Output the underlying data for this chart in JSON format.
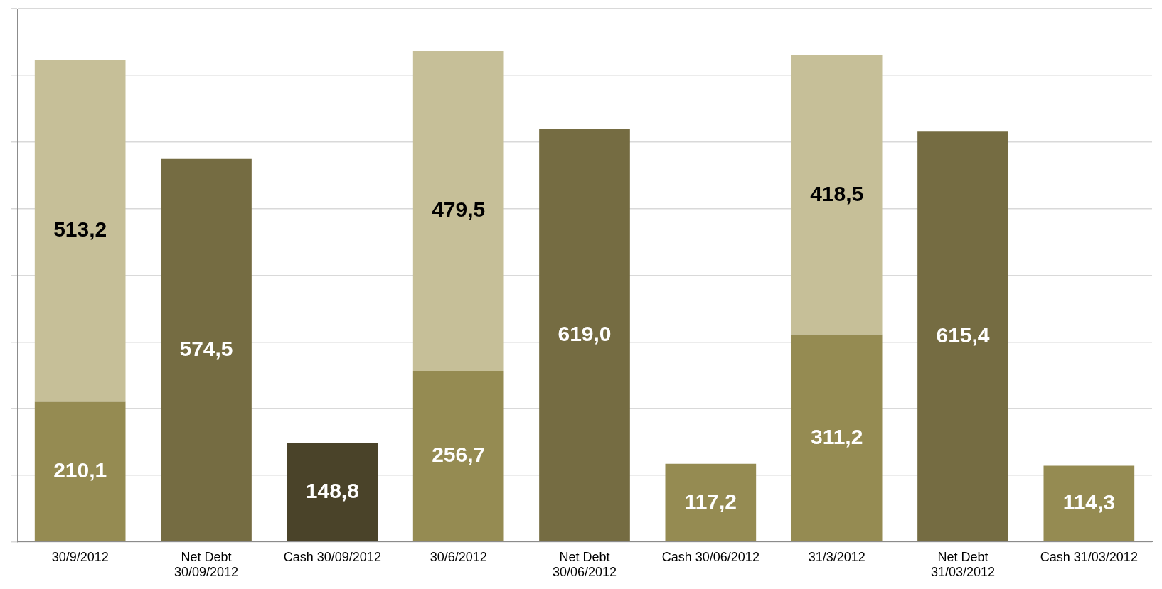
{
  "chart_data": {
    "type": "bar",
    "stacked": true,
    "categories": [
      "30/9/2012",
      "Net Debt\n30/09/2012",
      "Cash 30/09/2012",
      "30/6/2012",
      "Net Debt\n30/06/2012",
      "Cash 30/06/2012",
      "31/3/2012",
      "Net Debt\n31/03/2012",
      "Cash 31/03/2012"
    ],
    "series": [
      {
        "colors": [
          "#958b52",
          "#756c42",
          "#4a4329",
          "#958b52",
          "#756c42",
          "#958b52",
          "#958b52",
          "#756c42",
          "#958b52"
        ],
        "values": [
          210.1,
          574.5,
          148.8,
          256.7,
          619.0,
          117.2,
          311.2,
          615.4,
          114.3
        ],
        "value_labels": [
          "210,1",
          "574,5",
          "148,8",
          "256,7",
          "619,0",
          "117,2",
          "311,2",
          "615,4",
          "114,3"
        ]
      },
      {
        "color": "#c6bf98",
        "values": [
          513.2,
          null,
          null,
          479.5,
          null,
          null,
          418.5,
          null,
          null
        ],
        "value_labels": [
          "513,2",
          null,
          null,
          "479,5",
          null,
          null,
          "418,5",
          null,
          null
        ]
      }
    ],
    "ylim": [
      0,
      800
    ],
    "yticks": [
      0,
      100,
      200,
      300,
      400,
      500,
      600,
      700,
      800
    ],
    "tick_labels": "x",
    "grid": "y",
    "legend": false
  }
}
